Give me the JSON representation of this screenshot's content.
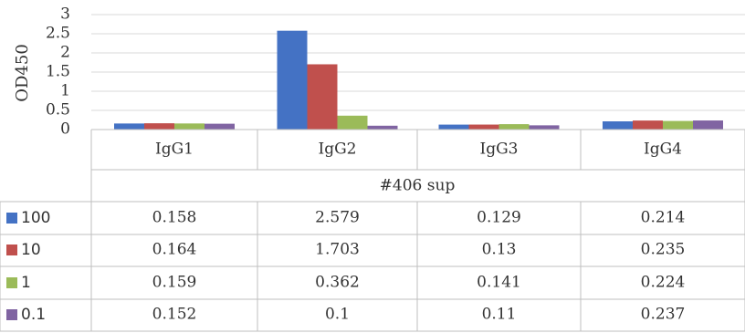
{
  "chart_data": {
    "type": "bar",
    "title": "",
    "ylabel": "OD450",
    "xlabel": "#406 sup",
    "categories": [
      "IgG1",
      "IgG2",
      "IgG3",
      "IgG4"
    ],
    "ylim": [
      0,
      3
    ],
    "yticks": [
      "0",
      "0.5",
      "1",
      "1.5",
      "2",
      "2.5",
      "3"
    ],
    "grid": true,
    "legend": "data-table",
    "series": [
      {
        "name": "100",
        "color": "#4472C4",
        "values": [
          0.158,
          2.579,
          0.129,
          0.214
        ],
        "labels": [
          "0.158",
          "2.579",
          "0.129",
          "0.214"
        ]
      },
      {
        "name": "10",
        "color": "#C0504D",
        "values": [
          0.164,
          1.703,
          0.13,
          0.235
        ],
        "labels": [
          "0.164",
          "1.703",
          "0.13",
          "0.235"
        ]
      },
      {
        "name": "1",
        "color": "#9BBB59",
        "values": [
          0.159,
          0.362,
          0.141,
          0.224
        ],
        "labels": [
          "0.159",
          "0.362",
          "0.141",
          "0.224"
        ]
      },
      {
        "name": "0.1",
        "color": "#8064A2",
        "values": [
          0.152,
          0.1,
          0.11,
          0.237
        ],
        "labels": [
          "0.152",
          "0.1",
          "0.11",
          "0.237"
        ]
      }
    ]
  }
}
